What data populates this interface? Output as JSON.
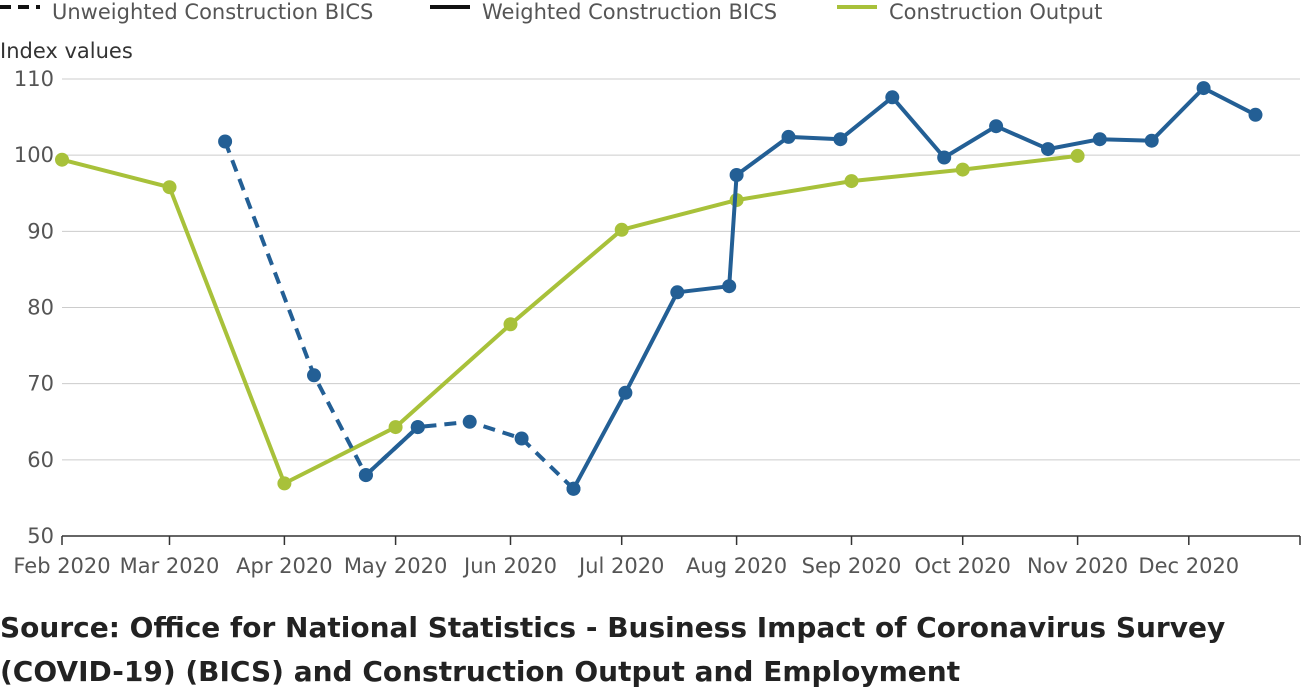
{
  "chart_data": {
    "type": "line",
    "ylabel": "Index values",
    "ylim": [
      50,
      110
    ],
    "yticks": [
      50,
      60,
      70,
      80,
      90,
      100,
      110
    ],
    "x_tick_labels": [
      "Feb 2020",
      "Mar 2020",
      "Apr 2020",
      "May 2020",
      "Jun 2020",
      "Jul 2020",
      "Aug 2020",
      "Sep 2020",
      "Oct 2020",
      "Nov 2020",
      "Dec 2020"
    ],
    "grid": true,
    "legend_position": "top",
    "series": [
      {
        "name": "Unweighted Construction BICS",
        "color": "#235f95",
        "style": "dashed",
        "x": [
          "2020-03-16",
          "2020-04-09",
          "2020-04-23",
          "2020-05-07",
          "2020-05-21",
          "2020-06-04",
          "2020-06-18"
        ],
        "y": [
          101.8,
          71.1,
          58.0,
          64.3,
          65.0,
          62.8,
          56.2
        ]
      },
      {
        "name": "Weighted Construction BICS",
        "color": "#235f95",
        "style": "solid",
        "x": [
          "2020-04-23",
          "2020-05-07",
          "2020-06-18",
          "2020-07-02",
          "2020-07-16",
          "2020-07-30",
          "2020-08-01",
          "2020-08-15",
          "2020-08-29",
          "2020-09-12",
          "2020-09-26",
          "2020-10-10",
          "2020-10-24",
          "2020-11-07",
          "2020-11-21",
          "2020-12-05",
          "2020-12-19"
        ],
        "y": [
          58.0,
          64.3,
          56.2,
          68.8,
          82.0,
          82.8,
          97.4,
          102.4,
          102.1,
          107.6,
          99.7,
          103.8,
          100.8,
          102.1,
          101.9,
          108.8,
          105.3
        ]
      },
      {
        "name": "Construction Output",
        "color": "#a8c13a",
        "style": "solid",
        "x": [
          "2020-02-01",
          "2020-03-01",
          "2020-04-01",
          "2020-05-01",
          "2020-06-01",
          "2020-07-01",
          "2020-08-01",
          "2020-09-01",
          "2020-10-01",
          "2020-11-01"
        ],
        "y": [
          99.4,
          95.8,
          56.9,
          64.3,
          77.8,
          90.2,
          94.1,
          96.6,
          98.1,
          99.9
        ]
      }
    ]
  },
  "source_text": "Source: Office for National Statistics - Business Impact of Coronavirus Survey (COVID-19) (BICS) and Construction Output and Employment"
}
